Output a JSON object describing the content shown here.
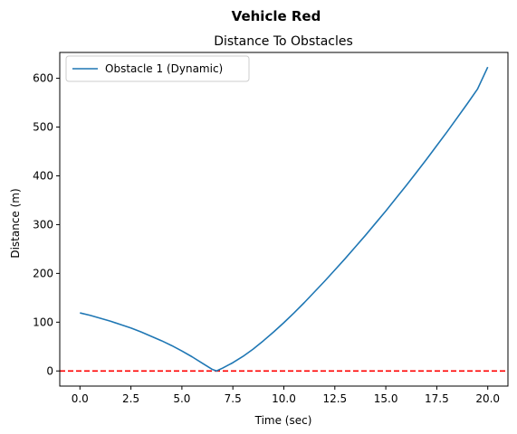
{
  "chart_data": {
    "type": "line",
    "suptitle": "Vehicle Red",
    "title": "Distance To Obstacles",
    "xlabel": "Time (sec)",
    "ylabel": "Distance (m)",
    "xlim": [
      -0.99,
      20.99
    ],
    "ylim": [
      -31,
      653
    ],
    "xticks": [
      0.0,
      2.5,
      5.0,
      7.5,
      10.0,
      12.5,
      15.0,
      17.5,
      20.0
    ],
    "xtick_labels": [
      "0.0",
      "2.5",
      "5.0",
      "7.5",
      "10.0",
      "12.5",
      "15.0",
      "17.5",
      "20.0"
    ],
    "yticks": [
      0,
      100,
      200,
      300,
      400,
      500,
      600
    ],
    "ytick_labels": [
      "0",
      "100",
      "200",
      "300",
      "400",
      "500",
      "600"
    ],
    "grid": false,
    "legend_position": "upper-left",
    "series": [
      {
        "name": "Obstacle 1 (Dynamic)",
        "color": "#1f77b4",
        "x": [
          0,
          0.5,
          1,
          1.5,
          2,
          2.5,
          3,
          3.5,
          4,
          4.5,
          5,
          5.5,
          6,
          6.5,
          6.7,
          7,
          7.5,
          8,
          8.5,
          9,
          9.5,
          10,
          10.5,
          11,
          11.5,
          12,
          12.5,
          13,
          13.5,
          14,
          14.5,
          15,
          15.5,
          16,
          16.5,
          17,
          17.5,
          18,
          18.5,
          19,
          19.5,
          20
        ],
        "y": [
          119,
          114,
          108,
          102,
          95,
          88,
          80,
          71,
          62,
          52,
          41,
          29,
          16,
          3,
          0,
          6,
          17,
          30,
          45,
          62,
          80,
          99,
          119,
          140,
          162,
          184,
          207,
          230,
          254,
          278,
          303,
          328,
          354,
          380,
          407,
          434,
          462,
          490,
          519,
          548,
          578,
          623
        ]
      }
    ],
    "reference_lines": [
      {
        "orientation": "horizontal",
        "y": 0,
        "color": "#ff0000",
        "style": "dashed"
      }
    ]
  }
}
